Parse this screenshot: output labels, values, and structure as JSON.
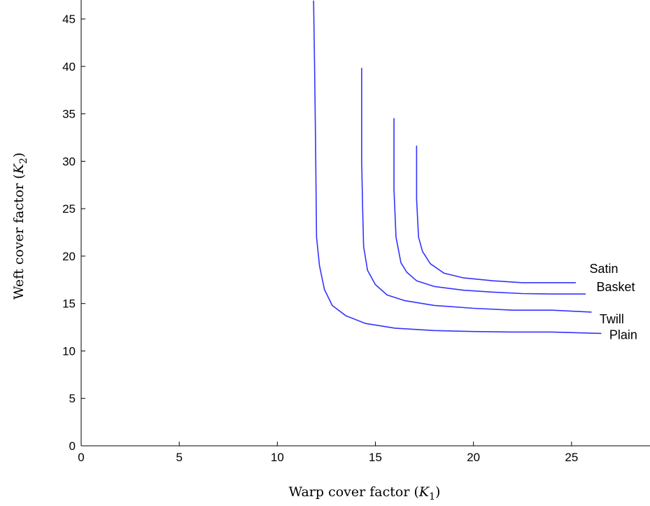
{
  "chart_data": {
    "type": "line",
    "title": "",
    "xlabel": {
      "prefix": "Warp cover factor (",
      "var": "K",
      "sub": "1",
      "suffix": ")"
    },
    "ylabel": {
      "prefix": "Weft cover factor (",
      "var": "K",
      "sub": "2",
      "suffix": ")"
    },
    "xlim": [
      0,
      29
    ],
    "ylim": [
      0,
      47
    ],
    "xticks": [
      0,
      5,
      10,
      15,
      20,
      25
    ],
    "yticks": [
      0,
      5,
      10,
      15,
      20,
      25,
      30,
      35,
      40,
      45
    ],
    "grid": false,
    "line_color": "#3333ff",
    "series": [
      {
        "name": "Plain",
        "x": [
          11.85,
          11.9,
          11.95,
          12.0,
          12.15,
          12.4,
          12.8,
          13.5,
          14.5,
          16.0,
          18.0,
          20.0,
          22.0,
          24.0,
          26.5
        ],
        "y": [
          46.9,
          40.0,
          32.0,
          22.0,
          19.0,
          16.5,
          14.8,
          13.7,
          12.9,
          12.4,
          12.15,
          12.05,
          12.0,
          12.0,
          11.85
        ]
      },
      {
        "name": "Twill",
        "x": [
          14.3,
          14.3,
          14.35,
          14.4,
          14.6,
          15.0,
          15.6,
          16.5,
          18.0,
          20.0,
          22.0,
          24.0,
          26.0
        ],
        "y": [
          39.8,
          30.0,
          25.0,
          21.0,
          18.5,
          17.0,
          15.9,
          15.3,
          14.8,
          14.5,
          14.3,
          14.3,
          14.1
        ]
      },
      {
        "name": "Basket",
        "x": [
          15.95,
          15.95,
          16.05,
          16.3,
          16.6,
          17.1,
          18.0,
          19.5,
          21.0,
          22.5,
          24.0,
          25.7
        ],
        "y": [
          34.5,
          27.0,
          22.0,
          19.3,
          18.3,
          17.4,
          16.8,
          16.4,
          16.2,
          16.05,
          16.0,
          16.0
        ]
      },
      {
        "name": "Satin",
        "x": [
          17.1,
          17.1,
          17.2,
          17.4,
          17.8,
          18.5,
          19.5,
          21.0,
          22.5,
          24.0,
          25.2
        ],
        "y": [
          31.6,
          26.0,
          22.0,
          20.5,
          19.2,
          18.2,
          17.7,
          17.4,
          17.2,
          17.2,
          17.2
        ]
      }
    ],
    "series_label_positions": [
      "right of each curve end"
    ]
  }
}
